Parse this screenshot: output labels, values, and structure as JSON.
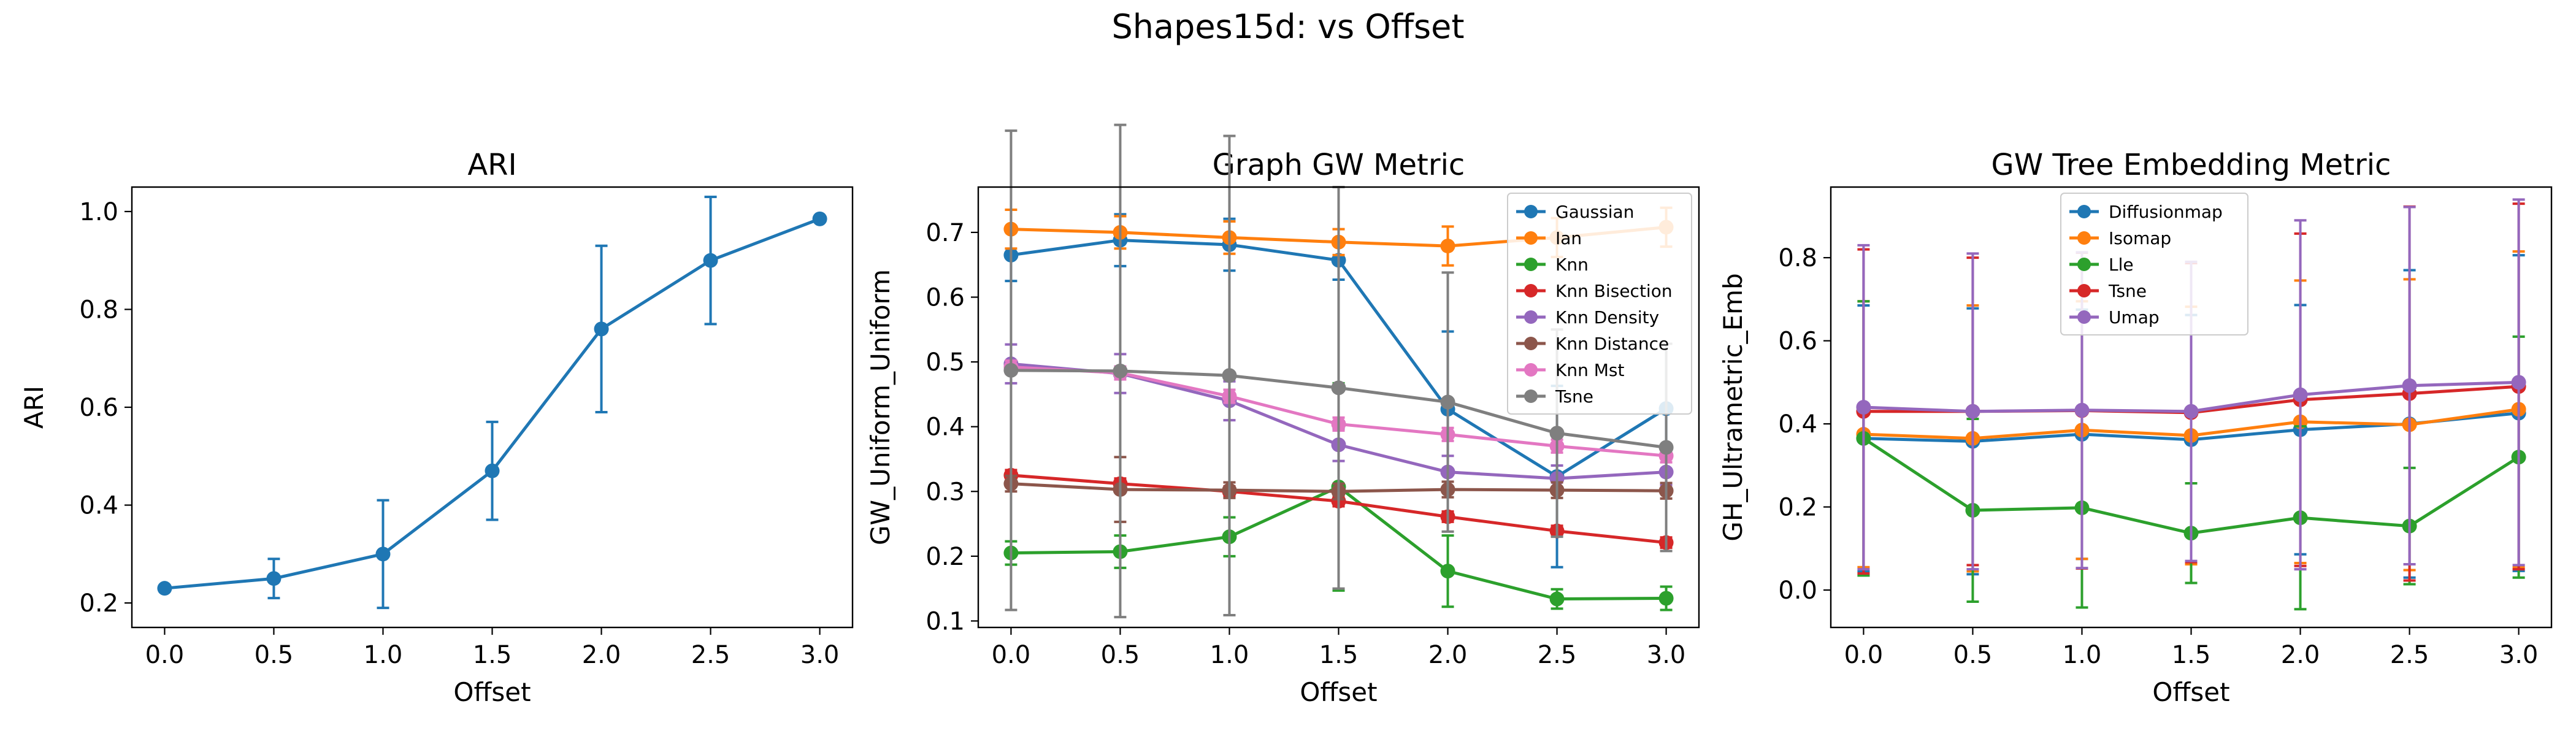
{
  "figure_title": "Shapes15d: vs Offset",
  "chart_data": [
    {
      "type": "line",
      "title": "ARI",
      "xlabel": "Offset",
      "ylabel": "ARI",
      "xlim": [
        -0.15,
        3.15
      ],
      "ylim": [
        0.15,
        1.05
      ],
      "x_ticks": [
        "0.0",
        "0.5",
        "1.0",
        "1.5",
        "2.0",
        "2.5",
        "3.0"
      ],
      "y_ticks": [
        "0.2",
        "0.4",
        "0.6",
        "0.8",
        "1.0"
      ],
      "legend": false,
      "grid": false,
      "x": [
        0.0,
        0.5,
        1.0,
        1.5,
        2.0,
        2.5,
        3.0
      ],
      "series": [
        {
          "color": "#1f77b4",
          "values": [
            0.23,
            0.25,
            0.3,
            0.47,
            0.76,
            0.9,
            0.985
          ],
          "err": [
            0.0,
            0.04,
            0.11,
            0.1,
            0.17,
            0.13,
            0.0
          ]
        }
      ]
    },
    {
      "type": "line",
      "title": "Graph GW Metric",
      "xlabel": "Offset",
      "ylabel": "GW_Uniform_Uniform",
      "xlim": [
        -0.15,
        3.15
      ],
      "ylim": [
        0.09,
        0.77
      ],
      "x_ticks": [
        "0.0",
        "0.5",
        "1.0",
        "1.5",
        "2.0",
        "2.5",
        "3.0"
      ],
      "y_ticks": [
        "0.1",
        "0.2",
        "0.3",
        "0.4",
        "0.5",
        "0.6",
        "0.7"
      ],
      "legend": "top-right",
      "grid": false,
      "x": [
        0.0,
        0.5,
        1.0,
        1.5,
        2.0,
        2.5,
        3.0
      ],
      "series": [
        {
          "name": "Gaussian",
          "color": "#1f77b4",
          "values": [
            0.665,
            0.688,
            0.681,
            0.657,
            0.427,
            0.323,
            0.428
          ],
          "err": [
            0.04,
            0.04,
            0.04,
            0.03,
            0.12,
            0.14,
            0.1
          ]
        },
        {
          "name": "Ian",
          "color": "#ff7f0e",
          "values": [
            0.705,
            0.7,
            0.692,
            0.685,
            0.679,
            0.692,
            0.708
          ],
          "err": [
            0.03,
            0.025,
            0.025,
            0.02,
            0.03,
            0.03,
            0.03
          ]
        },
        {
          "name": "Knn",
          "color": "#2ca02c",
          "values": [
            0.205,
            0.207,
            0.23,
            0.307,
            0.177,
            0.134,
            0.135
          ],
          "err": [
            0.018,
            0.025,
            0.03,
            0.16,
            0.055,
            0.015,
            0.018
          ]
        },
        {
          "name": "Knn Bisection",
          "color": "#d62728",
          "values": [
            0.325,
            0.312,
            0.3,
            0.285,
            0.261,
            0.239,
            0.221
          ],
          "err": [
            0.008,
            0.008,
            0.008,
            0.008,
            0.008,
            0.008,
            0.008
          ]
        },
        {
          "name": "Knn Density",
          "color": "#9467bd",
          "values": [
            0.497,
            0.482,
            0.44,
            0.372,
            0.33,
            0.32,
            0.33
          ],
          "err": [
            0.03,
            0.03,
            0.03,
            0.025,
            0.025,
            0.02,
            0.02
          ]
        },
        {
          "name": "Knn Distance",
          "color": "#8c564b",
          "values": [
            0.312,
            0.303,
            0.302,
            0.3,
            0.303,
            0.302,
            0.301
          ],
          "err": [
            0.012,
            0.05,
            0.012,
            0.012,
            0.012,
            0.012,
            0.012
          ]
        },
        {
          "name": "Knn Mst",
          "color": "#e377c2",
          "values": [
            0.492,
            0.483,
            0.447,
            0.404,
            0.388,
            0.37,
            0.355
          ],
          "err": [
            0.01,
            0.01,
            0.01,
            0.01,
            0.01,
            0.01,
            0.01
          ]
        },
        {
          "name": "Tsne",
          "color": "#7f7f7f",
          "values": [
            0.487,
            0.486,
            0.479,
            0.46,
            0.438,
            0.39,
            0.368
          ],
          "err": [
            0.37,
            0.38,
            0.37,
            0.31,
            0.2,
            0.16,
            0.16
          ]
        }
      ]
    },
    {
      "type": "line",
      "title": "GW Tree Embedding Metric",
      "xlabel": "Offset",
      "ylabel": "GH_Ultrametric_Emb",
      "xlim": [
        -0.15,
        3.15
      ],
      "ylim": [
        -0.09,
        0.97
      ],
      "x_ticks": [
        "0.0",
        "0.5",
        "1.0",
        "1.5",
        "2.0",
        "2.5",
        "3.0"
      ],
      "y_ticks": [
        "0.0",
        "0.2",
        "0.4",
        "0.6",
        "0.8"
      ],
      "legend": "top-center",
      "grid": false,
      "x": [
        0.0,
        0.5,
        1.0,
        1.5,
        2.0,
        2.5,
        3.0
      ],
      "series": [
        {
          "name": "Diffusionmap",
          "color": "#1f77b4",
          "values": [
            0.365,
            0.358,
            0.375,
            0.362,
            0.386,
            0.4,
            0.426
          ],
          "err": [
            0.32,
            0.32,
            0.3,
            0.3,
            0.3,
            0.37,
            0.38
          ]
        },
        {
          "name": "Isomap",
          "color": "#ff7f0e",
          "values": [
            0.375,
            0.365,
            0.385,
            0.372,
            0.405,
            0.398,
            0.435
          ],
          "err": [
            0.32,
            0.32,
            0.31,
            0.31,
            0.34,
            0.35,
            0.38
          ]
        },
        {
          "name": "Lle",
          "color": "#2ca02c",
          "values": [
            0.365,
            0.192,
            0.198,
            0.137,
            0.174,
            0.154,
            0.32
          ],
          "err": [
            0.33,
            0.22,
            0.24,
            0.12,
            0.22,
            0.14,
            0.29
          ]
        },
        {
          "name": "Tsne",
          "color": "#d62728",
          "values": [
            0.43,
            0.43,
            0.432,
            0.427,
            0.458,
            0.473,
            0.49
          ],
          "err": [
            0.39,
            0.37,
            0.38,
            0.36,
            0.4,
            0.45,
            0.44
          ]
        },
        {
          "name": "Umap",
          "color": "#9467bd",
          "values": [
            0.44,
            0.43,
            0.433,
            0.43,
            0.47,
            0.492,
            0.5
          ],
          "err": [
            0.39,
            0.38,
            0.38,
            0.36,
            0.42,
            0.43,
            0.44
          ]
        }
      ]
    }
  ]
}
